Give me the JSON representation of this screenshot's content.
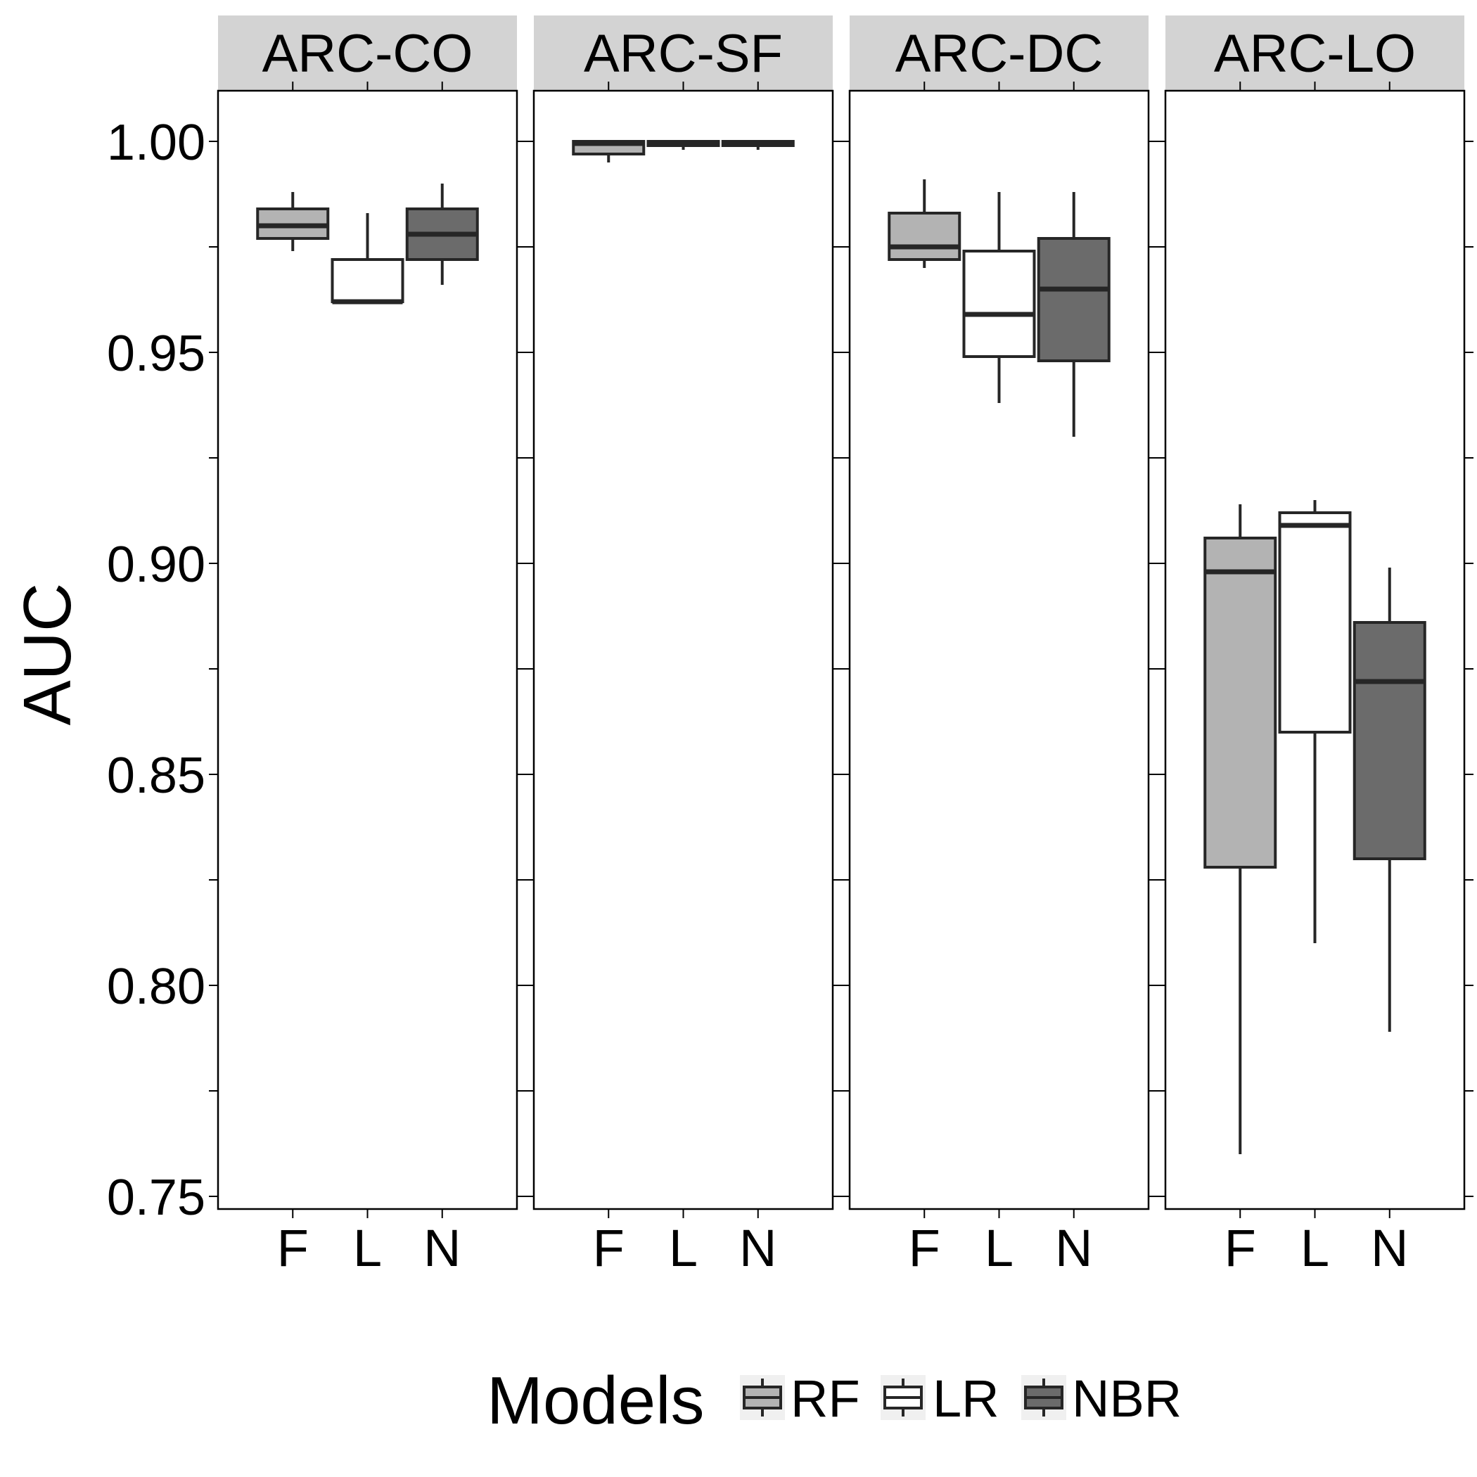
{
  "chart_data": {
    "type": "box",
    "ylabel": "AUC",
    "xlabel": "",
    "ylim": [
      0.747,
      1.012
    ],
    "y_ticks": [
      "0.75",
      "0.80",
      "0.85",
      "0.90",
      "0.95",
      "1.00"
    ],
    "x_ticks": [
      "F",
      "L",
      "N"
    ],
    "grid": false,
    "legend": {
      "title": "Models",
      "position": "bottom",
      "items": [
        {
          "key": "F",
          "label": "RF",
          "color": "#b3b3b3"
        },
        {
          "key": "L",
          "label": "LR",
          "color": "#ffffff"
        },
        {
          "key": "N",
          "label": "NBR",
          "color": "#6b6b6b"
        }
      ]
    },
    "panels": [
      {
        "name": "ARC-CO",
        "boxes": [
          {
            "model": "F",
            "min": 0.974,
            "q1": 0.977,
            "median": 0.98,
            "q3": 0.984,
            "max": 0.988
          },
          {
            "model": "L",
            "min": 0.962,
            "q1": 0.962,
            "median": 0.962,
            "q3": 0.972,
            "max": 0.983
          },
          {
            "model": "N",
            "min": 0.966,
            "q1": 0.972,
            "median": 0.978,
            "q3": 0.984,
            "max": 0.99
          }
        ]
      },
      {
        "name": "ARC-SF",
        "boxes": [
          {
            "model": "F",
            "min": 0.995,
            "q1": 0.997,
            "median": 0.9995,
            "q3": 1.0,
            "max": 1.0
          },
          {
            "model": "L",
            "min": 0.998,
            "q1": 0.999,
            "median": 0.9995,
            "q3": 1.0,
            "max": 1.0
          },
          {
            "model": "N",
            "min": 0.998,
            "q1": 0.999,
            "median": 0.9995,
            "q3": 1.0,
            "max": 1.0
          }
        ]
      },
      {
        "name": "ARC-DC",
        "boxes": [
          {
            "model": "F",
            "min": 0.97,
            "q1": 0.972,
            "median": 0.975,
            "q3": 0.983,
            "max": 0.991
          },
          {
            "model": "L",
            "min": 0.938,
            "q1": 0.949,
            "median": 0.959,
            "q3": 0.974,
            "max": 0.988
          },
          {
            "model": "N",
            "min": 0.93,
            "q1": 0.948,
            "median": 0.965,
            "q3": 0.977,
            "max": 0.988
          }
        ]
      },
      {
        "name": "ARC-LO",
        "boxes": [
          {
            "model": "F",
            "min": 0.76,
            "q1": 0.828,
            "median": 0.898,
            "q3": 0.906,
            "max": 0.914
          },
          {
            "model": "L",
            "min": 0.81,
            "q1": 0.86,
            "median": 0.909,
            "q3": 0.912,
            "max": 0.915
          },
          {
            "model": "N",
            "min": 0.789,
            "q1": 0.83,
            "median": 0.872,
            "q3": 0.886,
            "max": 0.899
          }
        ]
      }
    ]
  }
}
